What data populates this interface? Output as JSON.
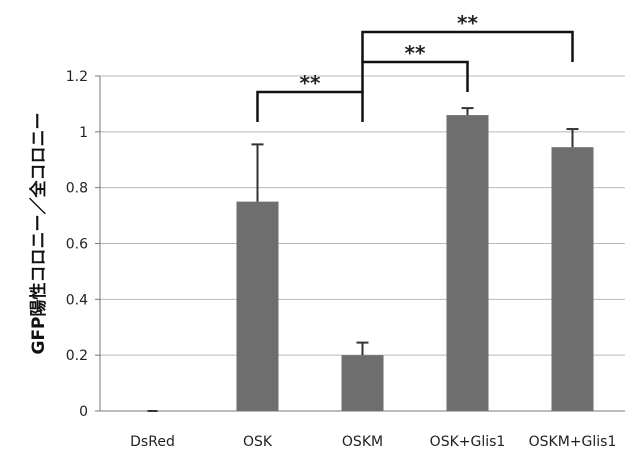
{
  "chart_data": {
    "type": "bar",
    "ylabel": "GFP陽性コロニー／全コロニー",
    "ylim": [
      0,
      1.2
    ],
    "yticks": [
      "0",
      "0.2",
      "0.4",
      "0.6",
      "0.8",
      "1",
      "1.2"
    ],
    "categories": [
      "DsRed",
      "OSK",
      "OSKM",
      "OSK+Glis1",
      "OSKM+Glis1"
    ],
    "values": [
      0,
      0.75,
      0.2,
      1.06,
      0.945
    ],
    "errors": [
      0,
      0.205,
      0.045,
      0.025,
      0.065
    ],
    "bar_color": "#6e6e6e",
    "grid": true,
    "significance": [
      {
        "from": "OSK",
        "to": "OSKM",
        "label": "**"
      },
      {
        "from": "OSKM",
        "to": "OSK+Glis1",
        "label": "**"
      },
      {
        "from": "OSKM",
        "to": "OSKM+Glis1",
        "label": "**"
      }
    ]
  }
}
